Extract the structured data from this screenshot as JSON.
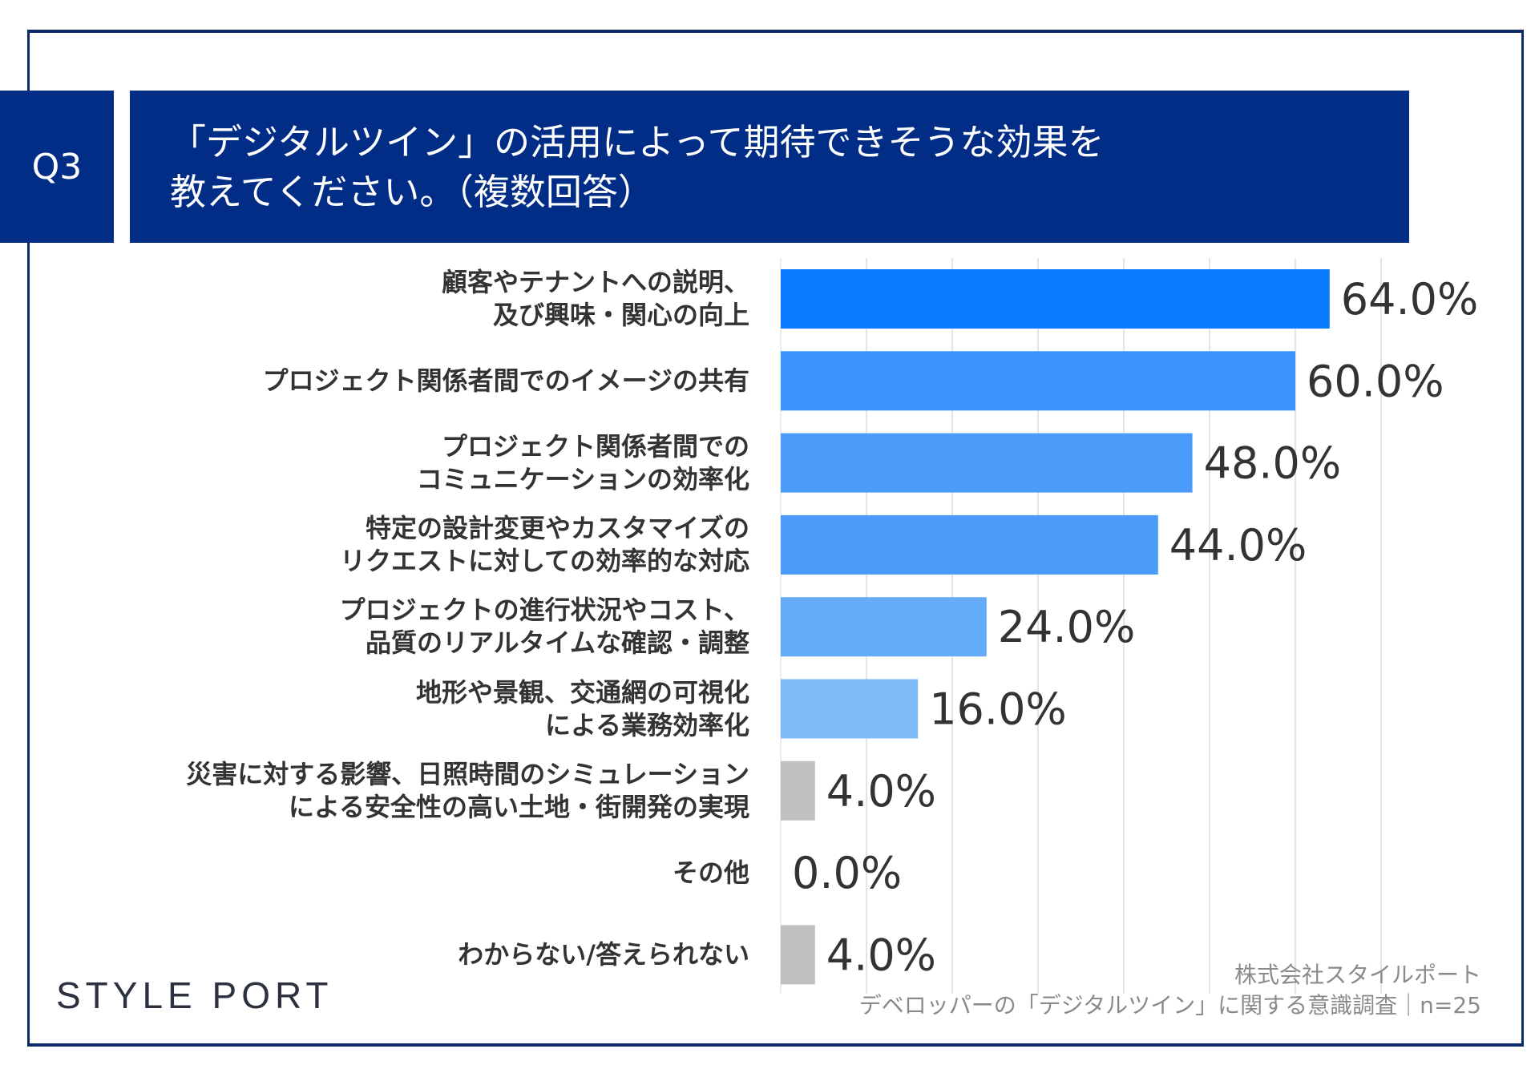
{
  "question": {
    "number": "Q3",
    "title_lines": [
      "「デジタルツイン」の活用によって期待できそうな効果を",
      "教えてください。（複数回答）"
    ]
  },
  "chart_data": {
    "type": "bar",
    "orientation": "horizontal",
    "categories": [
      [
        "顧客やテナントへの説明、",
        "及び興味・関心の向上"
      ],
      [
        "プロジェクト関係者間でのイメージの共有"
      ],
      [
        "プロジェクト関係者間での",
        "コミュニケーションの効率化"
      ],
      [
        "特定の設計変更やカスタマイズの",
        "リクエストに対しての効率的な対応"
      ],
      [
        "プロジェクトの進行状況やコスト、",
        "品質のリアルタイムな確認・調整"
      ],
      [
        "地形や景観、交通網の可視化",
        "による業務効率化"
      ],
      [
        "災害に対する影響、日照時間のシミュレーション",
        "による安全性の高い土地・街開発の実現"
      ],
      [
        "その他"
      ],
      [
        "わからない/答えられない"
      ]
    ],
    "values": [
      64.0,
      60.0,
      48.0,
      44.0,
      24.0,
      16.0,
      4.0,
      0.0,
      4.0
    ],
    "value_labels": [
      "64.0%",
      "60.0%",
      "48.0%",
      "44.0%",
      "24.0%",
      "16.0%",
      "4.0%",
      "0.0%",
      "4.0%"
    ],
    "colors": [
      "#0a7cff",
      "#3a92fb",
      "#4b9cfa",
      "#4b9cfa",
      "#64abf8",
      "#7fbbf9",
      "#c0c0c0",
      "#c0c0c0",
      "#c0c0c0"
    ],
    "xlim": [
      0,
      70
    ],
    "grid": true,
    "grid_step": 10
  },
  "brand": {
    "logo": "STYLE PORT"
  },
  "footer": {
    "company": "株式会社スタイルポート",
    "survey": "デベロッパーの「デジタルツイン」に関する意識調査｜n=25"
  }
}
